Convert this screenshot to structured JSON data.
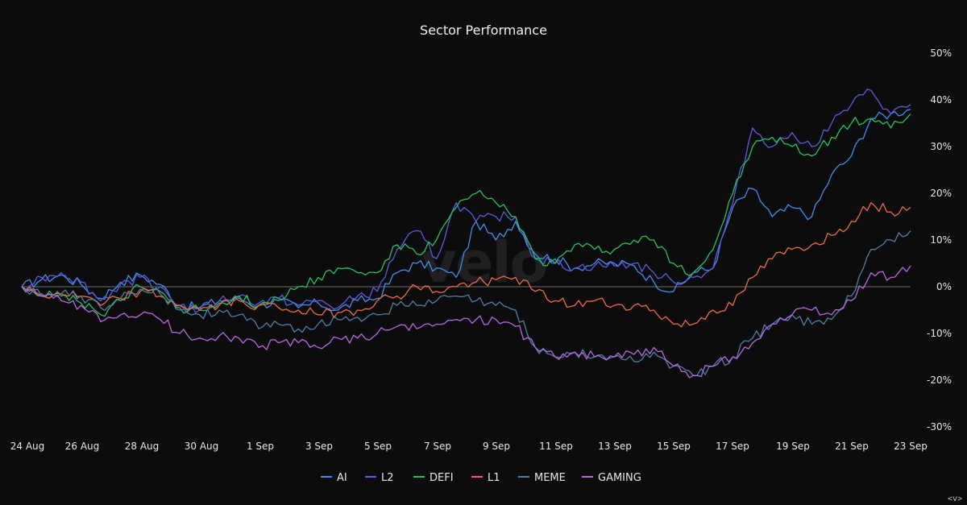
{
  "chart_data": {
    "type": "line",
    "title": "Sector Performance",
    "watermark": "velo",
    "corner_label": "<v>",
    "x_ticks": [
      "24 Aug",
      "26 Aug",
      "28 Aug",
      "30 Aug",
      "1 Sep",
      "3 Sep",
      "5 Sep",
      "7 Sep",
      "9 Sep",
      "11 Sep",
      "13 Sep",
      "15 Sep",
      "17 Sep",
      "19 Sep",
      "21 Sep",
      "23 Sep"
    ],
    "y_ticks": [
      "50%",
      "40%",
      "30%",
      "20%",
      "10%",
      "0%",
      "-10%",
      "-20%",
      "-30%"
    ],
    "ylim": [
      -30,
      50
    ],
    "xlim_days": [
      0,
      30
    ],
    "legend_position": "bottom-center",
    "series": [
      {
        "name": "AI",
        "color": "#3f8ff0",
        "points": [
          [
            0,
            0
          ],
          [
            1,
            1.5
          ],
          [
            2,
            2.5
          ],
          [
            3,
            0.5
          ],
          [
            4,
            -2.5
          ],
          [
            5,
            1
          ],
          [
            6,
            2.5
          ],
          [
            7,
            0.5
          ],
          [
            8,
            -4
          ],
          [
            9,
            -4.5
          ],
          [
            10,
            -3
          ],
          [
            11,
            -2.5
          ],
          [
            12,
            -4
          ],
          [
            13,
            -3
          ],
          [
            14,
            -4.5
          ],
          [
            15,
            -3.5
          ],
          [
            16,
            -5
          ],
          [
            17,
            -3
          ],
          [
            18,
            -2.5
          ],
          [
            19,
            3
          ],
          [
            20,
            5
          ],
          [
            21,
            4
          ],
          [
            22,
            2
          ],
          [
            23,
            14
          ],
          [
            24,
            10
          ],
          [
            25,
            14
          ],
          [
            26,
            7
          ],
          [
            27,
            6
          ],
          [
            28,
            4
          ],
          [
            29,
            5
          ],
          [
            30,
            5
          ],
          [
            31,
            4.5
          ],
          [
            32,
            1
          ],
          [
            33,
            -1
          ],
          [
            34,
            3
          ],
          [
            35,
            4
          ],
          [
            36,
            17
          ],
          [
            37,
            21
          ],
          [
            38,
            15
          ],
          [
            39,
            17
          ],
          [
            40,
            15
          ],
          [
            41,
            24
          ],
          [
            42,
            28
          ],
          [
            43,
            36
          ],
          [
            44,
            37
          ],
          [
            45,
            38
          ]
        ]
      },
      {
        "name": "L2",
        "color": "#5a5ce0",
        "points": [
          [
            0,
            0
          ],
          [
            1,
            2
          ],
          [
            2,
            3
          ],
          [
            3,
            1
          ],
          [
            4,
            -3
          ],
          [
            5,
            0.5
          ],
          [
            6,
            2
          ],
          [
            7,
            0
          ],
          [
            8,
            -4
          ],
          [
            9,
            -5
          ],
          [
            10,
            -3
          ],
          [
            11,
            -2
          ],
          [
            12,
            -3.5
          ],
          [
            13,
            -2.5
          ],
          [
            14,
            -4
          ],
          [
            15,
            -3
          ],
          [
            16,
            -4.5
          ],
          [
            17,
            -2
          ],
          [
            18,
            -1
          ],
          [
            19,
            8
          ],
          [
            20,
            12
          ],
          [
            21,
            6
          ],
          [
            22,
            18
          ],
          [
            23,
            14
          ],
          [
            24,
            15
          ],
          [
            25,
            15
          ],
          [
            26,
            6
          ],
          [
            27,
            5
          ],
          [
            28,
            4
          ],
          [
            29,
            4.5
          ],
          [
            30,
            4.5
          ],
          [
            31,
            5
          ],
          [
            32,
            3
          ],
          [
            33,
            1
          ],
          [
            34,
            2
          ],
          [
            35,
            4
          ],
          [
            36,
            18
          ],
          [
            37,
            34
          ],
          [
            38,
            30
          ],
          [
            39,
            33
          ],
          [
            40,
            30
          ],
          [
            41,
            35
          ],
          [
            42,
            39
          ],
          [
            43,
            42
          ],
          [
            44,
            37
          ],
          [
            45,
            39
          ]
        ]
      },
      {
        "name": "DEFI",
        "color": "#25c25a",
        "points": [
          [
            0,
            0
          ],
          [
            1,
            -1.5
          ],
          [
            2,
            -2
          ],
          [
            3,
            -3.5
          ],
          [
            4,
            -6
          ],
          [
            5,
            -3
          ],
          [
            6,
            0
          ],
          [
            7,
            -1
          ],
          [
            8,
            -4.5
          ],
          [
            9,
            -5
          ],
          [
            10,
            -3.5
          ],
          [
            11,
            -2
          ],
          [
            12,
            -4
          ],
          [
            13,
            -2.5
          ],
          [
            14,
            0
          ],
          [
            15,
            2
          ],
          [
            16,
            4
          ],
          [
            17,
            3
          ],
          [
            18,
            3
          ],
          [
            19,
            9
          ],
          [
            20,
            7
          ],
          [
            21,
            10
          ],
          [
            22,
            17
          ],
          [
            23,
            20
          ],
          [
            24,
            18
          ],
          [
            25,
            15
          ],
          [
            26,
            6
          ],
          [
            27,
            5
          ],
          [
            28,
            9
          ],
          [
            29,
            8
          ],
          [
            30,
            8
          ],
          [
            31,
            10
          ],
          [
            32,
            10
          ],
          [
            33,
            5
          ],
          [
            34,
            3
          ],
          [
            35,
            8
          ],
          [
            36,
            20
          ],
          [
            37,
            30
          ],
          [
            38,
            32
          ],
          [
            39,
            30
          ],
          [
            40,
            28
          ],
          [
            41,
            32
          ],
          [
            42,
            35
          ],
          [
            43,
            36
          ],
          [
            44,
            34
          ],
          [
            45,
            37
          ]
        ]
      },
      {
        "name": "L1",
        "color": "#ee6a43",
        "points": [
          [
            0,
            0
          ],
          [
            1,
            -2
          ],
          [
            2,
            -1.5
          ],
          [
            3,
            -2
          ],
          [
            4,
            -4
          ],
          [
            5,
            -2.5
          ],
          [
            6,
            -1
          ],
          [
            7,
            -2
          ],
          [
            8,
            -4
          ],
          [
            9,
            -5
          ],
          [
            10,
            -4
          ],
          [
            11,
            -3
          ],
          [
            12,
            -4
          ],
          [
            13,
            -4.5
          ],
          [
            14,
            -5
          ],
          [
            15,
            -6
          ],
          [
            16,
            -5.5
          ],
          [
            17,
            -5
          ],
          [
            18,
            -3
          ],
          [
            19,
            -2
          ],
          [
            20,
            0
          ],
          [
            21,
            -1
          ],
          [
            22,
            0
          ],
          [
            23,
            1
          ],
          [
            24,
            1.5
          ],
          [
            25,
            2
          ],
          [
            26,
            -1
          ],
          [
            27,
            -3
          ],
          [
            28,
            -4
          ],
          [
            29,
            -3
          ],
          [
            30,
            -4
          ],
          [
            31,
            -4
          ],
          [
            32,
            -5
          ],
          [
            33,
            -8
          ],
          [
            34,
            -8
          ],
          [
            35,
            -5
          ],
          [
            36,
            -4
          ],
          [
            37,
            2
          ],
          [
            38,
            6
          ],
          [
            39,
            8
          ],
          [
            40,
            9
          ],
          [
            41,
            11
          ],
          [
            42,
            14
          ],
          [
            43,
            18
          ],
          [
            44,
            16
          ],
          [
            45,
            17
          ]
        ]
      },
      {
        "name": "MEME",
        "color": "#4f7fa8",
        "points": [
          [
            0,
            0
          ],
          [
            1,
            -2
          ],
          [
            2,
            -1.5
          ],
          [
            3,
            -2
          ],
          [
            4,
            -4.5
          ],
          [
            5,
            -2.5
          ],
          [
            6,
            -0.5
          ],
          [
            7,
            -1.5
          ],
          [
            8,
            -5
          ],
          [
            9,
            -6
          ],
          [
            10,
            -5
          ],
          [
            11,
            -6
          ],
          [
            12,
            -9
          ],
          [
            13,
            -8
          ],
          [
            14,
            -9
          ],
          [
            15,
            -8
          ],
          [
            16,
            -7
          ],
          [
            17,
            -6.5
          ],
          [
            18,
            -6
          ],
          [
            19,
            -4
          ],
          [
            20,
            -4
          ],
          [
            21,
            -3
          ],
          [
            22,
            -2
          ],
          [
            23,
            -3
          ],
          [
            24,
            -4
          ],
          [
            25,
            -5
          ],
          [
            26,
            -13
          ],
          [
            27,
            -15
          ],
          [
            28,
            -14
          ],
          [
            29,
            -15
          ],
          [
            30,
            -15
          ],
          [
            31,
            -16
          ],
          [
            32,
            -14
          ],
          [
            33,
            -17
          ],
          [
            34,
            -19
          ],
          [
            35,
            -17
          ],
          [
            36,
            -15
          ],
          [
            37,
            -11
          ],
          [
            38,
            -8
          ],
          [
            39,
            -6
          ],
          [
            40,
            -8
          ],
          [
            41,
            -7
          ],
          [
            42,
            -2
          ],
          [
            43,
            8
          ],
          [
            44,
            10
          ],
          [
            45,
            12
          ]
        ]
      },
      {
        "name": "GAMING",
        "color": "#b868e2",
        "points": [
          [
            0,
            0
          ],
          [
            1,
            -2
          ],
          [
            2,
            -3
          ],
          [
            3,
            -4
          ],
          [
            4,
            -7.5
          ],
          [
            5,
            -6
          ],
          [
            6,
            -6
          ],
          [
            7,
            -7
          ],
          [
            8,
            -10
          ],
          [
            9,
            -11
          ],
          [
            10,
            -10.5
          ],
          [
            11,
            -11
          ],
          [
            12,
            -13
          ],
          [
            13,
            -12
          ],
          [
            14,
            -12
          ],
          [
            15,
            -13
          ],
          [
            16,
            -11
          ],
          [
            17,
            -11
          ],
          [
            18,
            -10
          ],
          [
            19,
            -8.5
          ],
          [
            20,
            -9
          ],
          [
            21,
            -8
          ],
          [
            22,
            -7
          ],
          [
            23,
            -7
          ],
          [
            24,
            -7
          ],
          [
            25,
            -8.5
          ],
          [
            26,
            -13
          ],
          [
            27,
            -15
          ],
          [
            28,
            -14
          ],
          [
            29,
            -15
          ],
          [
            30,
            -15
          ],
          [
            31,
            -14.5
          ],
          [
            32,
            -13
          ],
          [
            33,
            -17
          ],
          [
            34,
            -19
          ],
          [
            35,
            -17
          ],
          [
            36,
            -15
          ],
          [
            37,
            -12
          ],
          [
            38,
            -8
          ],
          [
            39,
            -6
          ],
          [
            40,
            -5
          ],
          [
            41,
            -6
          ],
          [
            42,
            -3
          ],
          [
            43,
            3
          ],
          [
            44,
            2
          ],
          [
            45,
            4.5
          ]
        ]
      }
    ]
  }
}
